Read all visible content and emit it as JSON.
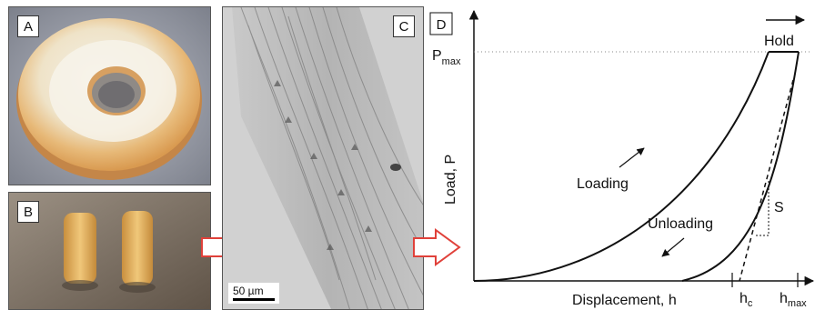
{
  "panels": {
    "a": {
      "label": "A"
    },
    "b": {
      "label": "B"
    },
    "c": {
      "label": "C",
      "scale_bar": "50 µm"
    },
    "d": {
      "label": "D"
    }
  },
  "colors": {
    "flow_arrow": "#e0413a",
    "curve": "#111111"
  },
  "diagram": {
    "y_axis_label": "Load, P",
    "x_axis_label": "Displacement, h",
    "p_max": {
      "main": "P",
      "sub": "max"
    },
    "hold_label": "Hold",
    "loading_label": "Loading",
    "unloading_label": "Unloading",
    "stiffness_label": "S",
    "h_c": {
      "main": "h",
      "sub": "c"
    },
    "h_max": {
      "main": "h",
      "sub": "max"
    }
  }
}
